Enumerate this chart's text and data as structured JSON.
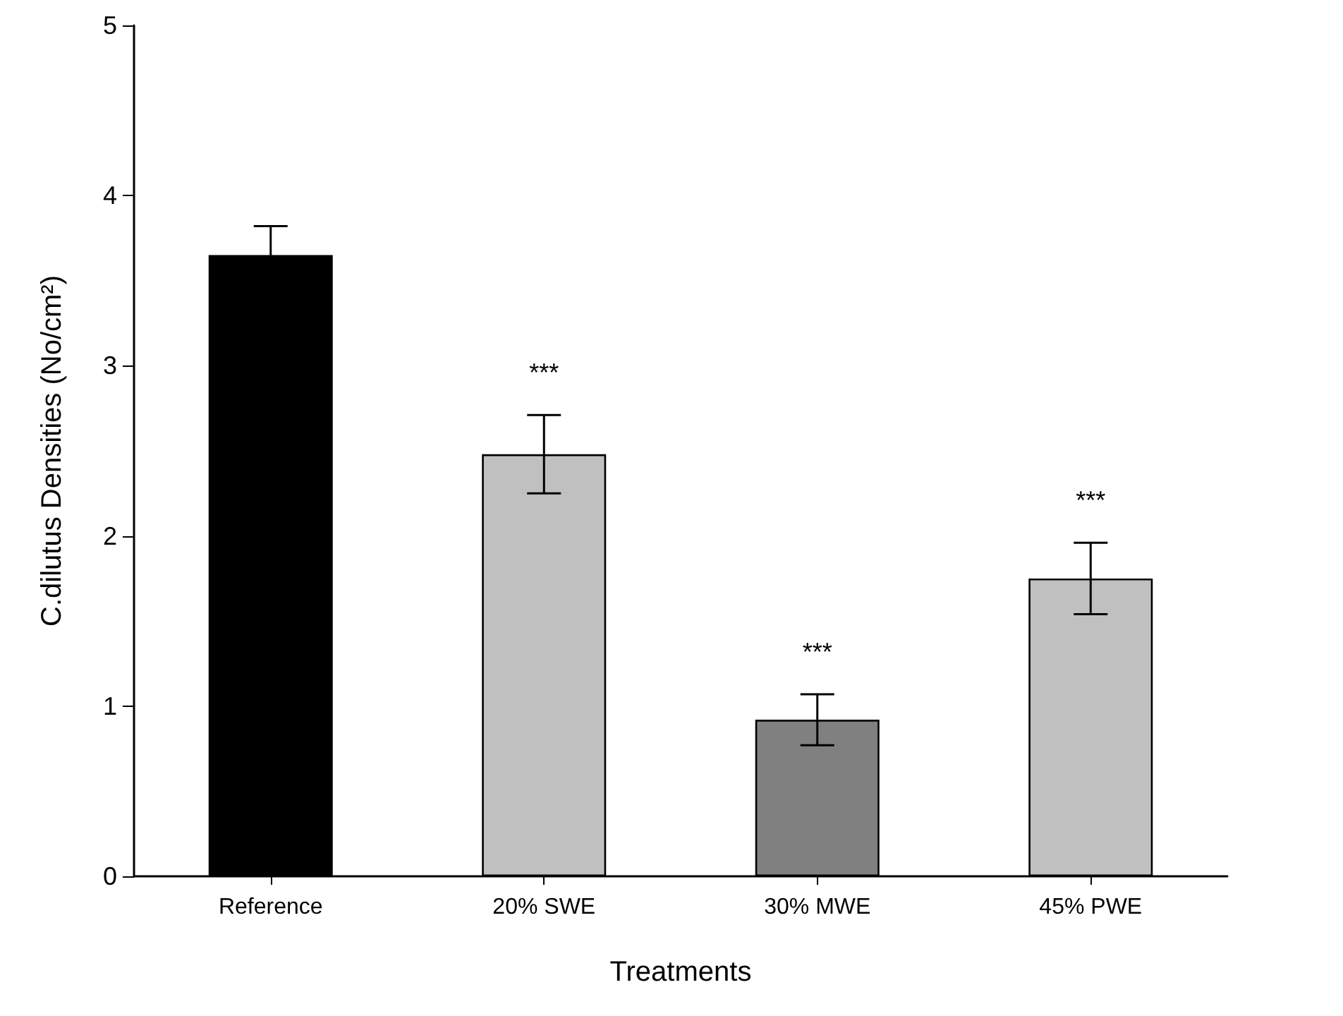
{
  "chart_data": {
    "type": "bar",
    "xlabel": "Treatments",
    "ylabel": "C.dilutus Densities (No/cm²)",
    "categories": [
      "Reference",
      "20% SWE",
      "30% MWE",
      "45% PWE"
    ],
    "values": [
      3.65,
      2.48,
      0.92,
      1.75
    ],
    "colors": [
      "#000000",
      "#c0c0c0",
      "#808080",
      "#c0c0c0"
    ],
    "errors": [
      0.17,
      0.23,
      0.15,
      0.21
    ],
    "ylim": [
      0,
      5
    ],
    "yticks": [
      0,
      1,
      2,
      3,
      4,
      5
    ],
    "grid": false,
    "annotations": [
      "***",
      "***",
      "***"
    ]
  }
}
